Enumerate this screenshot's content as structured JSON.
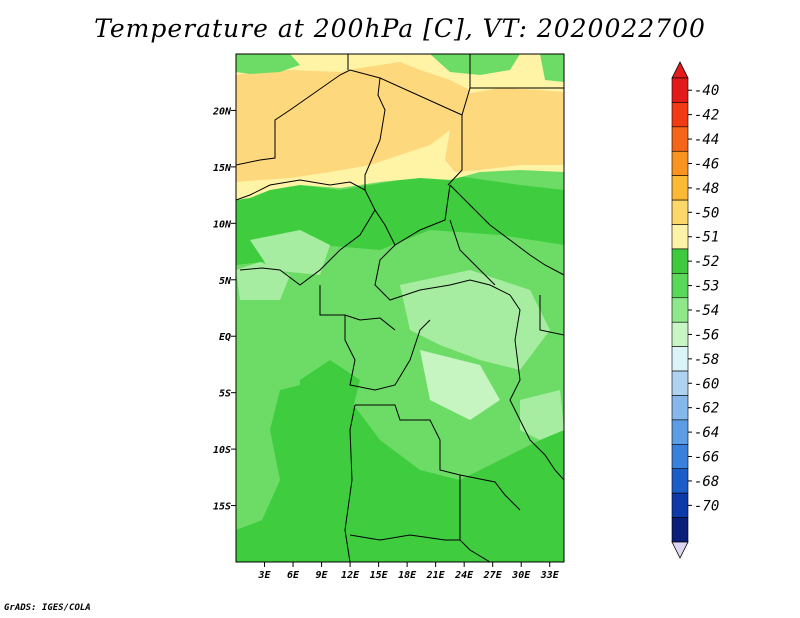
{
  "title": "Temperature at 200hPa [C], VT: 2020022700",
  "credit": "GrADS: IGES/COLA",
  "axes": {
    "lat_ticks": [
      {
        "label": "20N",
        "lat": 20
      },
      {
        "label": "15N",
        "lat": 15
      },
      {
        "label": "10N",
        "lat": 10
      },
      {
        "label": "5N",
        "lat": 5
      },
      {
        "label": "EQ",
        "lat": 0
      },
      {
        "label": "5S",
        "lat": -5
      },
      {
        "label": "10S",
        "lat": -10
      },
      {
        "label": "15S",
        "lat": -15
      }
    ],
    "lon_ticks": [
      {
        "label": "3E",
        "lon": 3
      },
      {
        "label": "6E",
        "lon": 6
      },
      {
        "label": "9E",
        "lon": 9
      },
      {
        "label": "12E",
        "lon": 12
      },
      {
        "label": "15E",
        "lon": 15
      },
      {
        "label": "18E",
        "lon": 18
      },
      {
        "label": "21E",
        "lon": 21
      },
      {
        "label": "24E",
        "lon": 24
      },
      {
        "label": "27E",
        "lon": 27
      },
      {
        "label": "30E",
        "lon": 30
      },
      {
        "label": "33E",
        "lon": 33
      }
    ],
    "lon_range": [
      0,
      34.5
    ],
    "lat_range": [
      -20,
      25
    ]
  },
  "colorbar": {
    "labels": [
      "-40",
      "-42",
      "-44",
      "-46",
      "-48",
      "-50",
      "-51",
      "-52",
      "-53",
      "-54",
      "-56",
      "-58",
      "-60",
      "-62",
      "-64",
      "-66",
      "-68",
      "-70"
    ],
    "colors": [
      "#e31a1c",
      "#f03b14",
      "#f5651a",
      "#f99420",
      "#fbb935",
      "#fcd76a",
      "#fdf3a8",
      "#3ec93e",
      "#5ad85a",
      "#8fe88a",
      "#c8f5c4",
      "#dcf3f7",
      "#aed2f0",
      "#86b8ec",
      "#5d9de5",
      "#3a80dd",
      "#1c5ec9",
      "#0d3aa8",
      "#0a1e7a"
    ],
    "top_arrow_color": "#e31a1c",
    "bottom_arrow_color": "#dcd6f4"
  },
  "map_colors": {
    "c50": "#fdd87c",
    "c51": "#fff3a6",
    "c52": "#3fcd3f",
    "c53": "#6ddc66",
    "c54": "#a7eda1",
    "c55": "#c6f5c2"
  }
}
